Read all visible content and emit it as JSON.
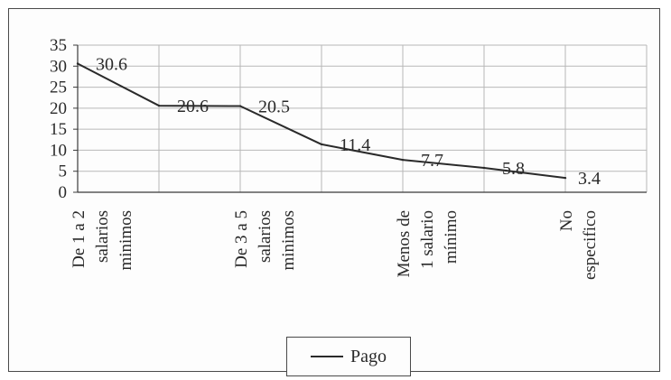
{
  "chart_data": {
    "type": "line",
    "categories": [
      "De 1 a 2 salarios minimos",
      "",
      "De 3 a 5 salarios minimos",
      "",
      "Menos de 1 salario mínimo",
      "",
      "No especifico"
    ],
    "category_lines": [
      [
        "De 1 a 2",
        "salarios",
        "minimos"
      ],
      [],
      [
        "De 3 a 5",
        "salarios",
        "minimos"
      ],
      [],
      [
        "Menos de",
        "1 salario",
        "mínimo"
      ],
      [],
      [
        "No",
        "especifico"
      ]
    ],
    "series": [
      {
        "name": "Pago",
        "values": [
          30.6,
          20.6,
          20.5,
          11.4,
          7.7,
          5.8,
          3.4
        ]
      }
    ],
    "data_labels": [
      "30.6",
      "20.6",
      "20.5",
      "11.4",
      "7.7",
      "5.8",
      "3.4"
    ],
    "ylim": [
      0,
      35
    ],
    "yticks": [
      0,
      5,
      10,
      15,
      20,
      25,
      30,
      35
    ],
    "grid": true,
    "legend_position": "bottom",
    "line_color": "#2a2a2a"
  }
}
